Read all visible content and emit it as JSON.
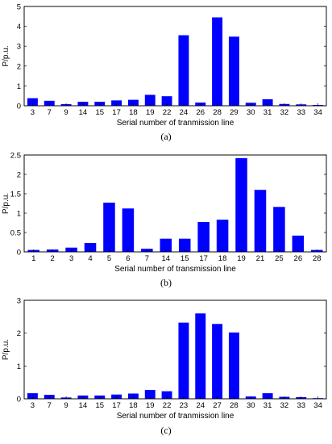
{
  "chart_data": [
    {
      "type": "bar",
      "panel_label": "(a)",
      "xlabel": "Serial number of tranmission line",
      "ylabel": "P/p.u.",
      "ylim": [
        0,
        5
      ],
      "yticks": [
        "0",
        "1",
        "2",
        "3",
        "4",
        "5"
      ],
      "categories": [
        "3",
        "7",
        "9",
        "14",
        "15",
        "17",
        "18",
        "19",
        "22",
        "24",
        "26",
        "28",
        "29",
        "30",
        "31",
        "32",
        "33",
        "34"
      ],
      "values": [
        0.38,
        0.25,
        0.08,
        0.2,
        0.2,
        0.27,
        0.3,
        0.55,
        0.48,
        3.55,
        0.16,
        4.45,
        3.48,
        0.15,
        0.33,
        0.09,
        0.07,
        0.04
      ],
      "bar_color": "#0000ff"
    },
    {
      "type": "bar",
      "panel_label": "(b)",
      "xlabel": "Serial number of transmission line",
      "ylabel": "P/p.u.",
      "ylim": [
        0,
        2.5
      ],
      "yticks": [
        "0",
        "0.5",
        "1",
        "1.5",
        "2",
        "2.5"
      ],
      "categories": [
        "1",
        "2",
        "3",
        "4",
        "5",
        "6",
        "7",
        "14",
        "15",
        "17",
        "18",
        "19",
        "21",
        "25",
        "26",
        "28"
      ],
      "values": [
        0.05,
        0.06,
        0.11,
        0.23,
        1.27,
        1.12,
        0.08,
        0.34,
        0.34,
        0.77,
        0.83,
        2.42,
        1.6,
        1.16,
        0.42,
        0.05
      ],
      "bar_color": "#0000ff"
    },
    {
      "type": "bar",
      "panel_label": "(c)",
      "xlabel": "Serial number of tranmission line",
      "ylabel": "P/p.u.",
      "ylim": [
        0,
        3
      ],
      "yticks": [
        "0",
        "1",
        "2",
        "3"
      ],
      "categories": [
        "3",
        "7",
        "9",
        "14",
        "15",
        "17",
        "18",
        "19",
        "22",
        "23",
        "24",
        "27",
        "28",
        "30",
        "31",
        "32",
        "33",
        "34"
      ],
      "values": [
        0.17,
        0.12,
        0.04,
        0.1,
        0.1,
        0.13,
        0.16,
        0.27,
        0.23,
        2.32,
        2.6,
        2.28,
        2.02,
        0.07,
        0.17,
        0.06,
        0.05,
        0.02
      ],
      "bar_color": "#0000ff"
    }
  ]
}
